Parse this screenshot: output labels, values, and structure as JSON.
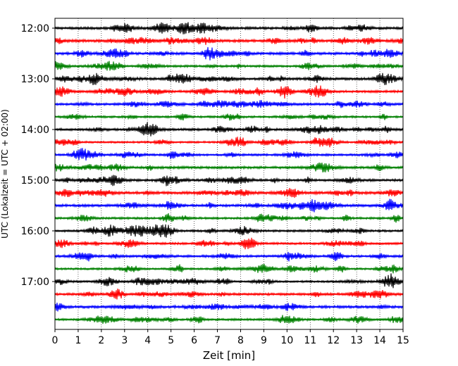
{
  "chart_data": {
    "type": "line",
    "title": "",
    "xlabel": "Zeit  [min]",
    "ylabel": "UTC (Lokalzeit = UTC + 02:00)",
    "xlim": [
      0,
      15
    ],
    "x_ticks": [
      "0",
      "1",
      "2",
      "3",
      "4",
      "5",
      "6",
      "7",
      "8",
      "9",
      "10",
      "11",
      "12",
      "13",
      "14",
      "15"
    ],
    "y_ticks": [
      "12:00",
      "13:00",
      "14:00",
      "15:00",
      "16:00",
      "17:00"
    ],
    "grid": "vertical-dotted",
    "legend": "none",
    "trace_colors": [
      "#000000",
      "#ff0000",
      "#0000ff",
      "#008000"
    ],
    "traces": [
      {
        "start": "12:00",
        "color": "#000000"
      },
      {
        "start": "12:15",
        "color": "#ff0000"
      },
      {
        "start": "12:30",
        "color": "#0000ff"
      },
      {
        "start": "12:45",
        "color": "#008000"
      },
      {
        "start": "13:00",
        "color": "#000000"
      },
      {
        "start": "13:15",
        "color": "#ff0000"
      },
      {
        "start": "13:30",
        "color": "#0000ff"
      },
      {
        "start": "13:45",
        "color": "#008000"
      },
      {
        "start": "14:00",
        "color": "#000000"
      },
      {
        "start": "14:15",
        "color": "#ff0000"
      },
      {
        "start": "14:30",
        "color": "#0000ff"
      },
      {
        "start": "14:45",
        "color": "#008000"
      },
      {
        "start": "15:00",
        "color": "#000000"
      },
      {
        "start": "15:15",
        "color": "#ff0000"
      },
      {
        "start": "15:30",
        "color": "#0000ff"
      },
      {
        "start": "15:45",
        "color": "#008000"
      },
      {
        "start": "16:00",
        "color": "#000000"
      },
      {
        "start": "16:15",
        "color": "#ff0000"
      },
      {
        "start": "16:30",
        "color": "#0000ff"
      },
      {
        "start": "16:45",
        "color": "#008000"
      },
      {
        "start": "17:00",
        "color": "#000000"
      },
      {
        "start": "17:15",
        "color": "#ff0000"
      },
      {
        "start": "17:30",
        "color": "#0000ff"
      },
      {
        "start": "17:45",
        "color": "#008000"
      }
    ]
  }
}
